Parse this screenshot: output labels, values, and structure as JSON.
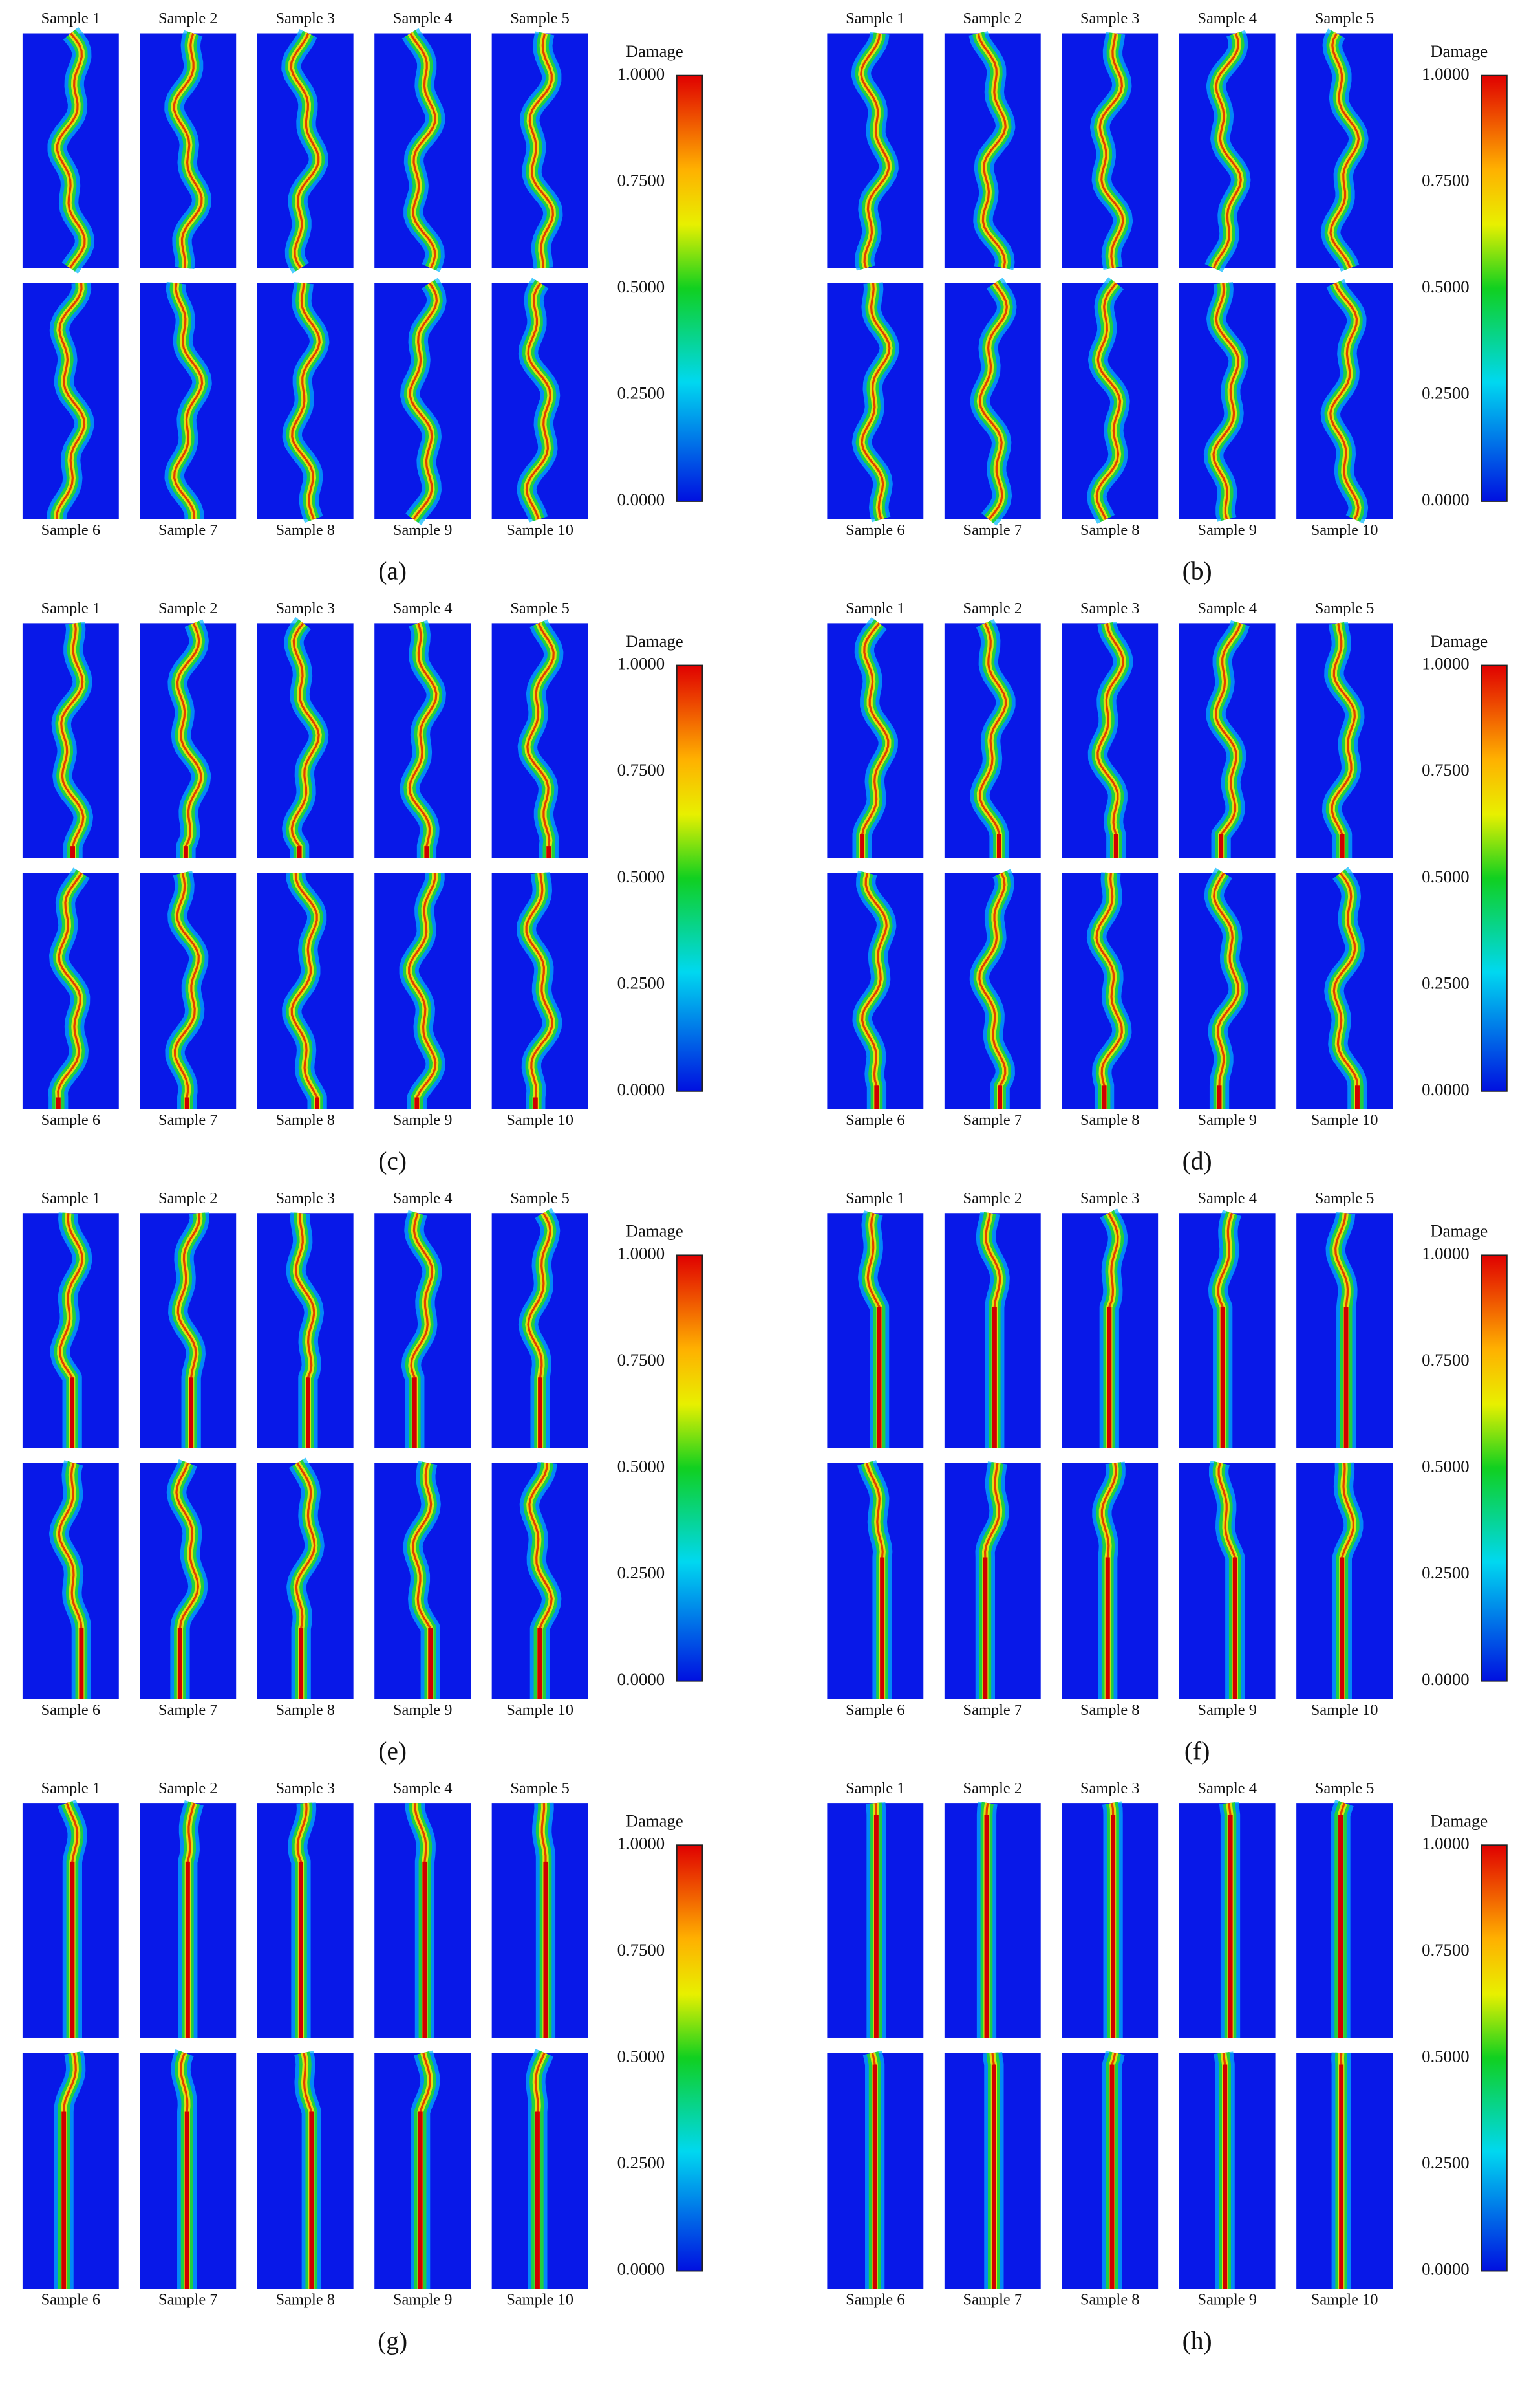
{
  "panels": [
    {
      "label": "(a)",
      "samples": [
        "Sample 1",
        "Sample 2",
        "Sample 3",
        "Sample 4",
        "Sample 5",
        "Sample 6",
        "Sample 7",
        "Sample 8",
        "Sample 9",
        "Sample 10"
      ],
      "colorbar": {
        "title": "Damage",
        "ticks": [
          "1.0000",
          "0.7500",
          "0.5000",
          "0.2500",
          "0.0000"
        ]
      }
    },
    {
      "label": "(b)",
      "samples": [
        "Sample 1",
        "Sample 2",
        "Sample 3",
        "Sample 4",
        "Sample 5",
        "Sample 6",
        "Sample 7",
        "Sample 8",
        "Sample 9",
        "Sample 10"
      ],
      "colorbar": {
        "title": "Damage",
        "ticks": [
          "1.0000",
          "0.7500",
          "0.5000",
          "0.2500",
          "0.0000"
        ]
      }
    },
    {
      "label": "(c)",
      "samples": [
        "Sample 1",
        "Sample 2",
        "Sample 3",
        "Sample 4",
        "Sample 5",
        "Sample 6",
        "Sample 7",
        "Sample 8",
        "Sample 9",
        "Sample 10"
      ],
      "colorbar": {
        "title": "Damage",
        "ticks": [
          "1.0000",
          "0.7500",
          "0.5000",
          "0.2500",
          "0.0000"
        ]
      }
    },
    {
      "label": "(d)",
      "samples": [
        "Sample 1",
        "Sample 2",
        "Sample 3",
        "Sample 4",
        "Sample 5",
        "Sample 6",
        "Sample 7",
        "Sample 8",
        "Sample 9",
        "Sample 10"
      ],
      "colorbar": {
        "title": "Damage",
        "ticks": [
          "1.0000",
          "0.7500",
          "0.5000",
          "0.2500",
          "0.0000"
        ]
      }
    },
    {
      "label": "(e)",
      "samples": [
        "Sample 1",
        "Sample 2",
        "Sample 3",
        "Sample 4",
        "Sample 5",
        "Sample 6",
        "Sample 7",
        "Sample 8",
        "Sample 9",
        "Sample 10"
      ],
      "colorbar": {
        "title": "Damage",
        "ticks": [
          "1.0000",
          "0.7500",
          "0.5000",
          "0.2500",
          "0.0000"
        ]
      }
    },
    {
      "label": "(f)",
      "samples": [
        "Sample 1",
        "Sample 2",
        "Sample 3",
        "Sample 4",
        "Sample 5",
        "Sample 6",
        "Sample 7",
        "Sample 8",
        "Sample 9",
        "Sample 10"
      ],
      "colorbar": {
        "title": "Damage",
        "ticks": [
          "1.0000",
          "0.7500",
          "0.5000",
          "0.2500",
          "0.0000"
        ]
      }
    },
    {
      "label": "(g)",
      "samples": [
        "Sample 1",
        "Sample 2",
        "Sample 3",
        "Sample 4",
        "Sample 5",
        "Sample 6",
        "Sample 7",
        "Sample 8",
        "Sample 9",
        "Sample 10"
      ],
      "colorbar": {
        "title": "Damage",
        "ticks": [
          "1.0000",
          "0.7500",
          "0.5000",
          "0.2500",
          "0.0000"
        ]
      }
    },
    {
      "label": "(h)",
      "samples": [
        "Sample 1",
        "Sample 2",
        "Sample 3",
        "Sample 4",
        "Sample 5",
        "Sample 6",
        "Sample 7",
        "Sample 8",
        "Sample 9",
        "Sample 10"
      ],
      "colorbar": {
        "title": "Damage",
        "ticks": [
          "1.0000",
          "0.7500",
          "0.5000",
          "0.2500",
          "0.0000"
        ]
      }
    }
  ]
}
